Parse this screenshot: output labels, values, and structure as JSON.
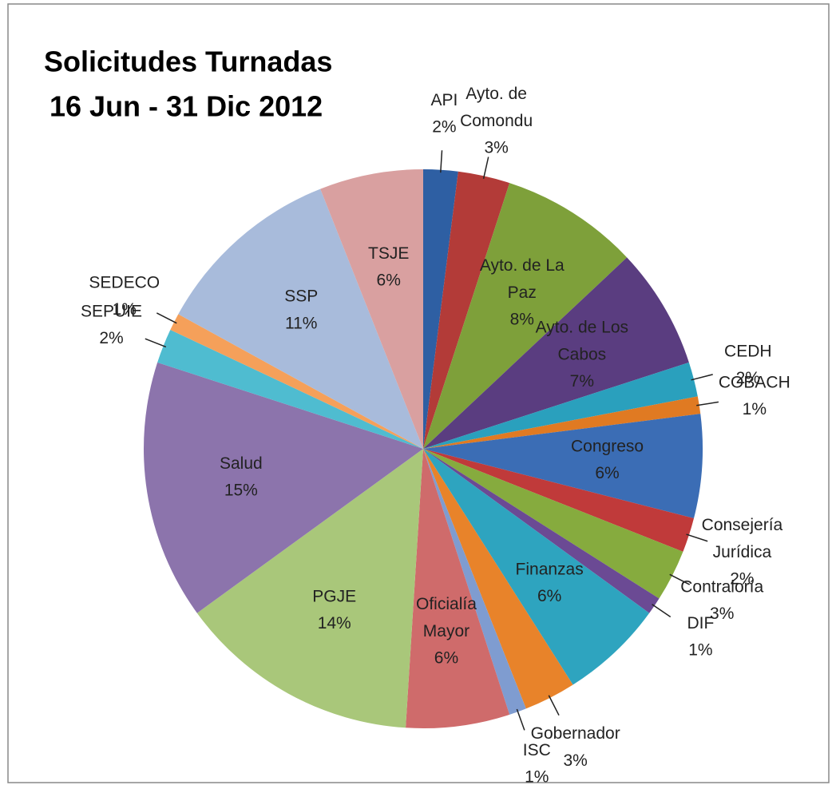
{
  "chart_data": {
    "type": "pie",
    "title": [
      "Solicitudes Turnadas",
      "16 Jun - 31 Dic 2012"
    ],
    "categories": [
      "API",
      "Ayto. de Comondu",
      "Ayto. de La Paz",
      "Ayto. de Los Cabos",
      "CEDH",
      "COBACH",
      "Congreso",
      "Consejería Jurídica",
      "Contraloría",
      "DIF",
      "Finanzas",
      "Gobernador",
      "ISC",
      "Oficialía Mayor",
      "PGJE",
      "Salud",
      "SEPUIE",
      "SEDECO",
      "SSP",
      "TSJE"
    ],
    "values": [
      2,
      3,
      8,
      7,
      2,
      1,
      6,
      2,
      3,
      1,
      6,
      3,
      1,
      6,
      14,
      15,
      2,
      1,
      11,
      6
    ],
    "value_labels": [
      "2%",
      "3%",
      "8%",
      "7%",
      "2%",
      "1%",
      "6%",
      "2%",
      "3%",
      "1%",
      "6%",
      "3%",
      "1%",
      "6%",
      "14%",
      "15%",
      "2%",
      "1%",
      "11%",
      "6%"
    ],
    "colors": [
      "#2e5fa3",
      "#b33b38",
      "#7ea03a",
      "#5a3d80",
      "#2aa0bd",
      "#e07a22",
      "#3b6db5",
      "#c03a3a",
      "#86ab3e",
      "#6b4a94",
      "#2ea4bf",
      "#e8832a",
      "#7f9cd0",
      "#cf6b6b",
      "#a9c77a",
      "#8c74ac",
      "#4fbcd0",
      "#f5a05a",
      "#a8bbdb",
      "#d9a0a0"
    ]
  }
}
